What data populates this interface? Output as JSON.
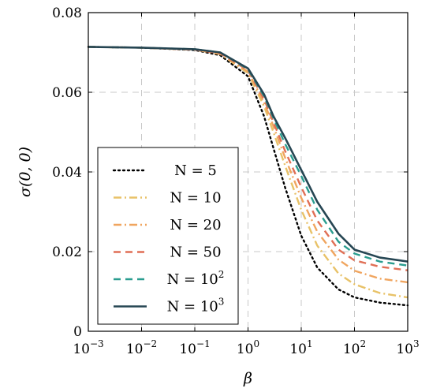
{
  "chart_data": {
    "type": "line",
    "title": "",
    "xlabel": "β",
    "ylabel": "σ(0, 0)",
    "x_scale": "log",
    "xlim": [
      0.001,
      1000
    ],
    "ylim": [
      0,
      0.08
    ],
    "grid": true,
    "legend_position": "lower-left",
    "x_tick_labels": [
      "10^-3",
      "10^-2",
      "10^-1",
      "10^0",
      "10^1",
      "10^2",
      "10^3"
    ],
    "y_tick_labels": [
      "0",
      "0.02",
      "0.04",
      "0.06",
      "0.08"
    ],
    "y_ticks": [
      0,
      0.02,
      0.04,
      0.06,
      0.08
    ],
    "series": [
      {
        "name": "N = 5",
        "color": "#000000",
        "style": "dotted",
        "points": [
          [
            0.001,
            0.0714
          ],
          [
            0.01,
            0.0712
          ],
          [
            0.1,
            0.0706
          ],
          [
            0.3,
            0.0693
          ],
          [
            1,
            0.064
          ],
          [
            2,
            0.054
          ],
          [
            3,
            0.046
          ],
          [
            5,
            0.036
          ],
          [
            10,
            0.024
          ],
          [
            20,
            0.016
          ],
          [
            50,
            0.0105
          ],
          [
            100,
            0.0085
          ],
          [
            300,
            0.0072
          ],
          [
            1000,
            0.0065
          ]
        ]
      },
      {
        "name": "N = 10",
        "color": "#e8c268",
        "style": "dashdot",
        "points": [
          [
            0.001,
            0.0714
          ],
          [
            0.01,
            0.0712
          ],
          [
            0.1,
            0.0707
          ],
          [
            0.3,
            0.0696
          ],
          [
            1,
            0.0648
          ],
          [
            2,
            0.0565
          ],
          [
            3,
            0.05
          ],
          [
            5,
            0.0415
          ],
          [
            10,
            0.0305
          ],
          [
            20,
            0.0215
          ],
          [
            50,
            0.0145
          ],
          [
            100,
            0.0118
          ],
          [
            300,
            0.0096
          ],
          [
            1000,
            0.0085
          ]
        ]
      },
      {
        "name": "N = 20",
        "color": "#f0a55f",
        "style": "dashdot",
        "points": [
          [
            0.001,
            0.0714
          ],
          [
            0.01,
            0.0712
          ],
          [
            0.1,
            0.0707
          ],
          [
            0.3,
            0.0697
          ],
          [
            1,
            0.0652
          ],
          [
            2,
            0.0575
          ],
          [
            3,
            0.0515
          ],
          [
            5,
            0.0435
          ],
          [
            10,
            0.0335
          ],
          [
            20,
            0.025
          ],
          [
            50,
            0.018
          ],
          [
            100,
            0.0152
          ],
          [
            300,
            0.0132
          ],
          [
            1000,
            0.0123
          ]
        ]
      },
      {
        "name": "N = 50",
        "color": "#e06f55",
        "style": "dashed",
        "points": [
          [
            0.001,
            0.0714
          ],
          [
            0.01,
            0.0712
          ],
          [
            0.1,
            0.0707
          ],
          [
            0.3,
            0.0698
          ],
          [
            1,
            0.0655
          ],
          [
            2,
            0.0583
          ],
          [
            3,
            0.0525
          ],
          [
            5,
            0.0452
          ],
          [
            10,
            0.0362
          ],
          [
            20,
            0.0278
          ],
          [
            50,
            0.0205
          ],
          [
            100,
            0.0178
          ],
          [
            300,
            0.0162
          ],
          [
            1000,
            0.0153
          ]
        ]
      },
      {
        "name": "N = 10^2",
        "color": "#2a9d8f",
        "style": "dashed",
        "points": [
          [
            0.001,
            0.0714
          ],
          [
            0.01,
            0.0712
          ],
          [
            0.1,
            0.0708
          ],
          [
            0.3,
            0.07
          ],
          [
            1,
            0.0658
          ],
          [
            2,
            0.059
          ],
          [
            3,
            0.0535
          ],
          [
            5,
            0.047
          ],
          [
            10,
            0.039
          ],
          [
            20,
            0.0305
          ],
          [
            50,
            0.0225
          ],
          [
            100,
            0.0195
          ],
          [
            300,
            0.0175
          ],
          [
            1000,
            0.0165
          ]
        ]
      },
      {
        "name": "N = 10^3",
        "color": "#264653",
        "style": "solid",
        "points": [
          [
            0.001,
            0.0714
          ],
          [
            0.01,
            0.0712
          ],
          [
            0.1,
            0.0708
          ],
          [
            0.3,
            0.07
          ],
          [
            1,
            0.066
          ],
          [
            2,
            0.0595
          ],
          [
            3,
            0.054
          ],
          [
            5,
            0.0485
          ],
          [
            10,
            0.0405
          ],
          [
            20,
            0.0325
          ],
          [
            50,
            0.0245
          ],
          [
            100,
            0.0205
          ],
          [
            300,
            0.0185
          ],
          [
            1000,
            0.0175
          ]
        ]
      }
    ]
  }
}
